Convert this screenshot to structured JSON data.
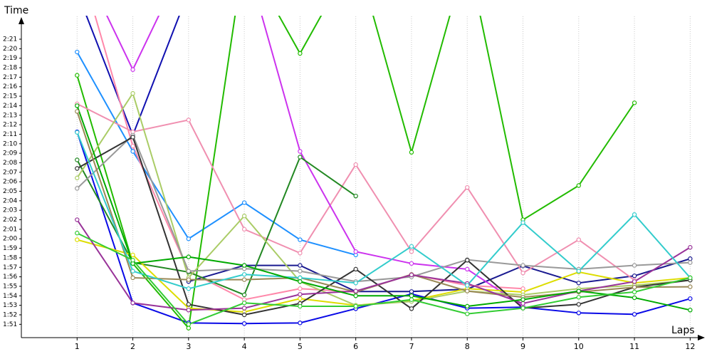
{
  "chart_data": {
    "type": "line",
    "y_label": "Time",
    "x_label": "Laps",
    "x": [
      1,
      2,
      3,
      4,
      5,
      6,
      7,
      8,
      9,
      10,
      11,
      12
    ],
    "xlim": [
      0,
      12.2
    ],
    "xticks": [
      1,
      2,
      3,
      4,
      5,
      6,
      7,
      8,
      9,
      10,
      11,
      12
    ],
    "ylim": [
      109.6,
      143.4
    ],
    "yticks": [
      {
        "value": 111,
        "label": "1:51"
      },
      {
        "value": 112,
        "label": "1:52"
      },
      {
        "value": 113,
        "label": "1:53"
      },
      {
        "value": 114,
        "label": "1:54"
      },
      {
        "value": 115,
        "label": "1:55"
      },
      {
        "value": 116,
        "label": "1:56"
      },
      {
        "value": 117,
        "label": "1:57"
      },
      {
        "value": 118,
        "label": "1:58"
      },
      {
        "value": 119,
        "label": "1:59"
      },
      {
        "value": 120,
        "label": "2:00"
      },
      {
        "value": 121,
        "label": "2:01"
      },
      {
        "value": 122,
        "label": "2:02"
      },
      {
        "value": 123,
        "label": "2:03"
      },
      {
        "value": 124,
        "label": "2:04"
      },
      {
        "value": 125,
        "label": "2:05"
      },
      {
        "value": 126,
        "label": "2:06"
      },
      {
        "value": 127,
        "label": "2:07"
      },
      {
        "value": 128,
        "label": "2:08"
      },
      {
        "value": 129,
        "label": "2:09"
      },
      {
        "value": 130,
        "label": "2:10"
      },
      {
        "value": 131,
        "label": "2:11"
      },
      {
        "value": 132,
        "label": "2:12"
      },
      {
        "value": 133,
        "label": "2:13"
      },
      {
        "value": 134,
        "label": "2:14"
      },
      {
        "value": 135,
        "label": "2:15"
      },
      {
        "value": 136,
        "label": "2:16"
      },
      {
        "value": 137,
        "label": "2:17"
      },
      {
        "value": 138,
        "label": "2:18"
      },
      {
        "value": 139,
        "label": "2:19"
      },
      {
        "value": 140,
        "label": "2:20"
      },
      {
        "value": 141,
        "label": "2:21"
      }
    ],
    "grid": true,
    "series": [
      {
        "color": "#0a0ae6",
        "values": [
          131.25,
          113.25,
          111.15,
          111.08,
          111.15,
          112.65,
          114.2,
          112.7,
          112.8,
          112.2,
          112.05,
          113.7
        ]
      },
      {
        "color": "#1010b0",
        "values": [
          146,
          130.9,
          146,
          null,
          null,
          null,
          null,
          null,
          null,
          null,
          null,
          null
        ]
      },
      {
        "color": "#1a1a90",
        "values": [
          null,
          null,
          115.5,
          117.2,
          117.2,
          114.45,
          114.45,
          114.7,
          117.15,
          115.35,
          116.1,
          117.9
        ]
      },
      {
        "color": "#1e90ff",
        "values": [
          139.65,
          129.2,
          120,
          123.8,
          119.9,
          118.3,
          null,
          null,
          null,
          null,
          null,
          null
        ]
      },
      {
        "color": "#22bb00",
        "values": [
          137.2,
          117.4,
          110.6,
          150,
          139.5,
          150,
          129.1,
          150,
          122,
          125.6,
          134.3,
          null
        ]
      },
      {
        "color": "#ff88aa",
        "values": [
          150,
          129.75,
          116.6,
          113.6,
          114.75,
          114.4,
          116.25,
          115.1,
          114.75,
          null,
          null,
          null
        ]
      },
      {
        "color": "#f08fb0",
        "values": [
          134.2,
          131.25,
          132.5,
          121,
          118.5,
          127.8,
          118.65,
          125.4,
          116.4,
          119.9,
          115.65,
          null
        ]
      },
      {
        "color": "#cc33ee",
        "values": [
          150,
          137.8,
          150,
          150,
          129.2,
          118.65,
          117.4,
          116.8,
          112.9,
          null,
          null,
          null
        ]
      },
      {
        "color": "#228822",
        "values": [
          128.3,
          117.5,
          116.5,
          114.1,
          128.6,
          124.5,
          null,
          null,
          null,
          null,
          null,
          null
        ]
      },
      {
        "color": "#dddd00",
        "values": [
          119.9,
          118.3,
          112.7,
          112.3,
          113.7,
          113.0,
          113.5,
          114.75,
          114.4,
          116.5,
          115.35,
          115.9
        ]
      },
      {
        "color": "#aacc66",
        "values": [
          126.4,
          135.3,
          115.9,
          122.4,
          115.5,
          113.0,
          113.4,
          114.5,
          114.1,
          114.75,
          115.1,
          115.65
        ]
      },
      {
        "color": "#999999",
        "values": [
          125.3,
          130.9,
          116.6,
          116.85,
          116.6,
          115.5,
          116.0,
          117.8,
          117.2,
          116.8,
          117.2,
          117.5
        ]
      },
      {
        "color": "#333333",
        "values": [
          127.4,
          130.7,
          113.1,
          112.0,
          113.2,
          116.8,
          112.65,
          117.75,
          112.7,
          113.1,
          114.9,
          115.65
        ]
      },
      {
        "color": "#998855",
        "values": [
          133.4,
          115.9,
          115.7,
          115.7,
          115.9,
          114.4,
          116.25,
          114.5,
          113.85,
          114.4,
          114.9,
          114.95
        ]
      },
      {
        "color": "#993399",
        "values": [
          122,
          113.25,
          112.5,
          112.7,
          114.15,
          114.5,
          116.2,
          115.3,
          113.2,
          114.5,
          115.5,
          119.1
        ]
      },
      {
        "color": "#33cccc",
        "values": [
          131.2,
          116.6,
          114.75,
          116.25,
          115.9,
          115.35,
          119.2,
          115.1,
          121.7,
          116.6,
          122.55,
          115.9
        ]
      },
      {
        "color": "#00aa00",
        "values": [
          134.0,
          117.4,
          118.1,
          117.2,
          115.5,
          114.0,
          114.0,
          112.9,
          113.6,
          114.5,
          113.8,
          112.5
        ]
      },
      {
        "color": "#33cc33",
        "values": [
          120.6,
          117.75,
          111.0,
          113.25,
          112.9,
          112.9,
          113.6,
          112.1,
          112.7,
          113.85,
          114.4,
          115.9
        ]
      }
    ]
  }
}
